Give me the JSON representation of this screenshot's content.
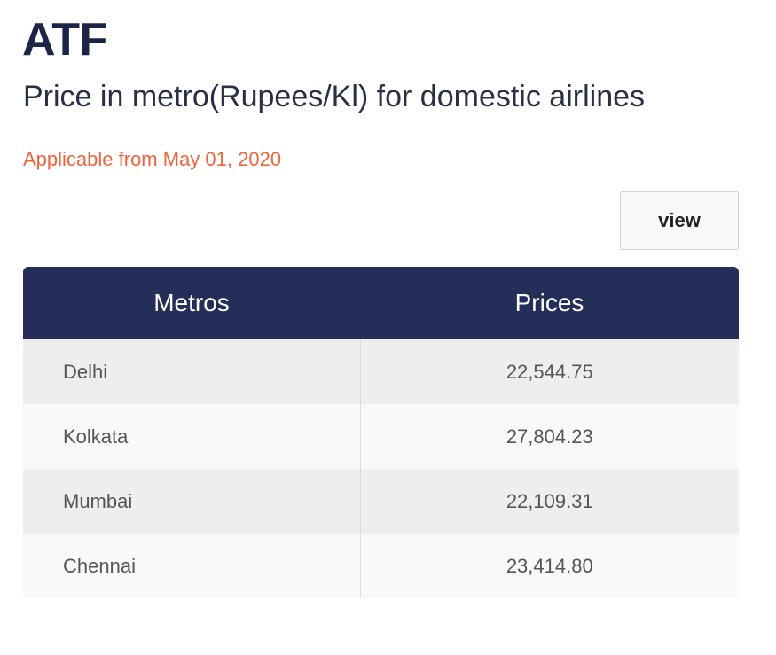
{
  "header": {
    "title": "ATF",
    "subtitle": "Price in metro(Rupees/Kl) for domestic airlines",
    "applicable": "Applicable from May 01, 2020"
  },
  "actions": {
    "view_label": "view"
  },
  "table": {
    "columns": [
      "Metros",
      "Prices"
    ],
    "rows": [
      {
        "metro": "Delhi",
        "price": "22,544.75"
      },
      {
        "metro": "Kolkata",
        "price": "27,804.23"
      },
      {
        "metro": "Mumbai",
        "price": "22,109.31"
      },
      {
        "metro": "Chennai",
        "price": "23,414.80"
      }
    ]
  },
  "colors": {
    "title_text": "#1c2446",
    "accent_orange": "#f0643c",
    "table_header_bg": "#252e59",
    "row_odd_bg": "#eeeeee",
    "row_even_bg": "#f9f9f9"
  }
}
